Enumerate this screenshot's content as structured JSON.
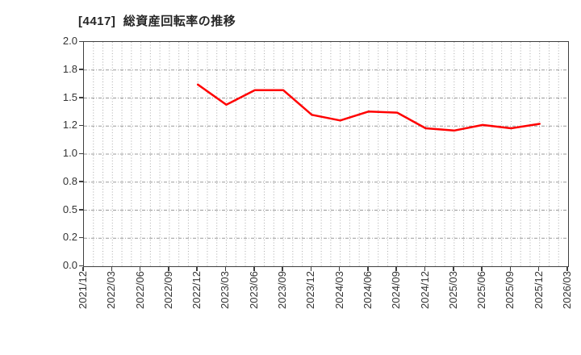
{
  "chart_data": {
    "type": "line",
    "title": "[4417]  総資産回転率の推移",
    "title_color": "#262626",
    "line_color": "#ff0000",
    "axis_color": "#3f3f3f",
    "tick_label_color": "#333333",
    "grid": true,
    "legend_position": "none",
    "ylim": [
      0.0,
      2.0
    ],
    "y_ticks": [
      {
        "value": 0.0,
        "label": "0.0"
      },
      {
        "value": 0.25,
        "label": "0.2"
      },
      {
        "value": 0.5,
        "label": "0.5"
      },
      {
        "value": 0.75,
        "label": "0.8"
      },
      {
        "value": 1.0,
        "label": "1.0"
      },
      {
        "value": 1.25,
        "label": "1.2"
      },
      {
        "value": 1.5,
        "label": "1.5"
      },
      {
        "value": 1.75,
        "label": "1.8"
      },
      {
        "value": 2.0,
        "label": "2.0"
      }
    ],
    "x_tick_labels": [
      "2021/12",
      "2022/03",
      "2022/06",
      "2022/09",
      "2022/12",
      "2023/03",
      "2023/06",
      "2023/09",
      "2023/12",
      "2024/03",
      "2024/06",
      "2024/09",
      "2024/12",
      "2025/03",
      "2025/06",
      "2025/09",
      "2025/12",
      "2026/03"
    ],
    "series": [
      {
        "points": [
          {
            "x": "2022/12",
            "y": 1.62
          },
          {
            "x": "2023/03",
            "y": 1.44
          },
          {
            "x": "2023/06",
            "y": 1.57
          },
          {
            "x": "2023/09",
            "y": 1.57
          },
          {
            "x": "2023/12",
            "y": 1.35
          },
          {
            "x": "2024/03",
            "y": 1.3
          },
          {
            "x": "2024/06",
            "y": 1.38
          },
          {
            "x": "2024/09",
            "y": 1.37
          },
          {
            "x": "2024/12",
            "y": 1.23
          },
          {
            "x": "2025/03",
            "y": 1.21
          },
          {
            "x": "2025/06",
            "y": 1.26
          },
          {
            "x": "2025/09",
            "y": 1.23
          },
          {
            "x": "2025/12",
            "y": 1.27
          }
        ]
      }
    ]
  }
}
